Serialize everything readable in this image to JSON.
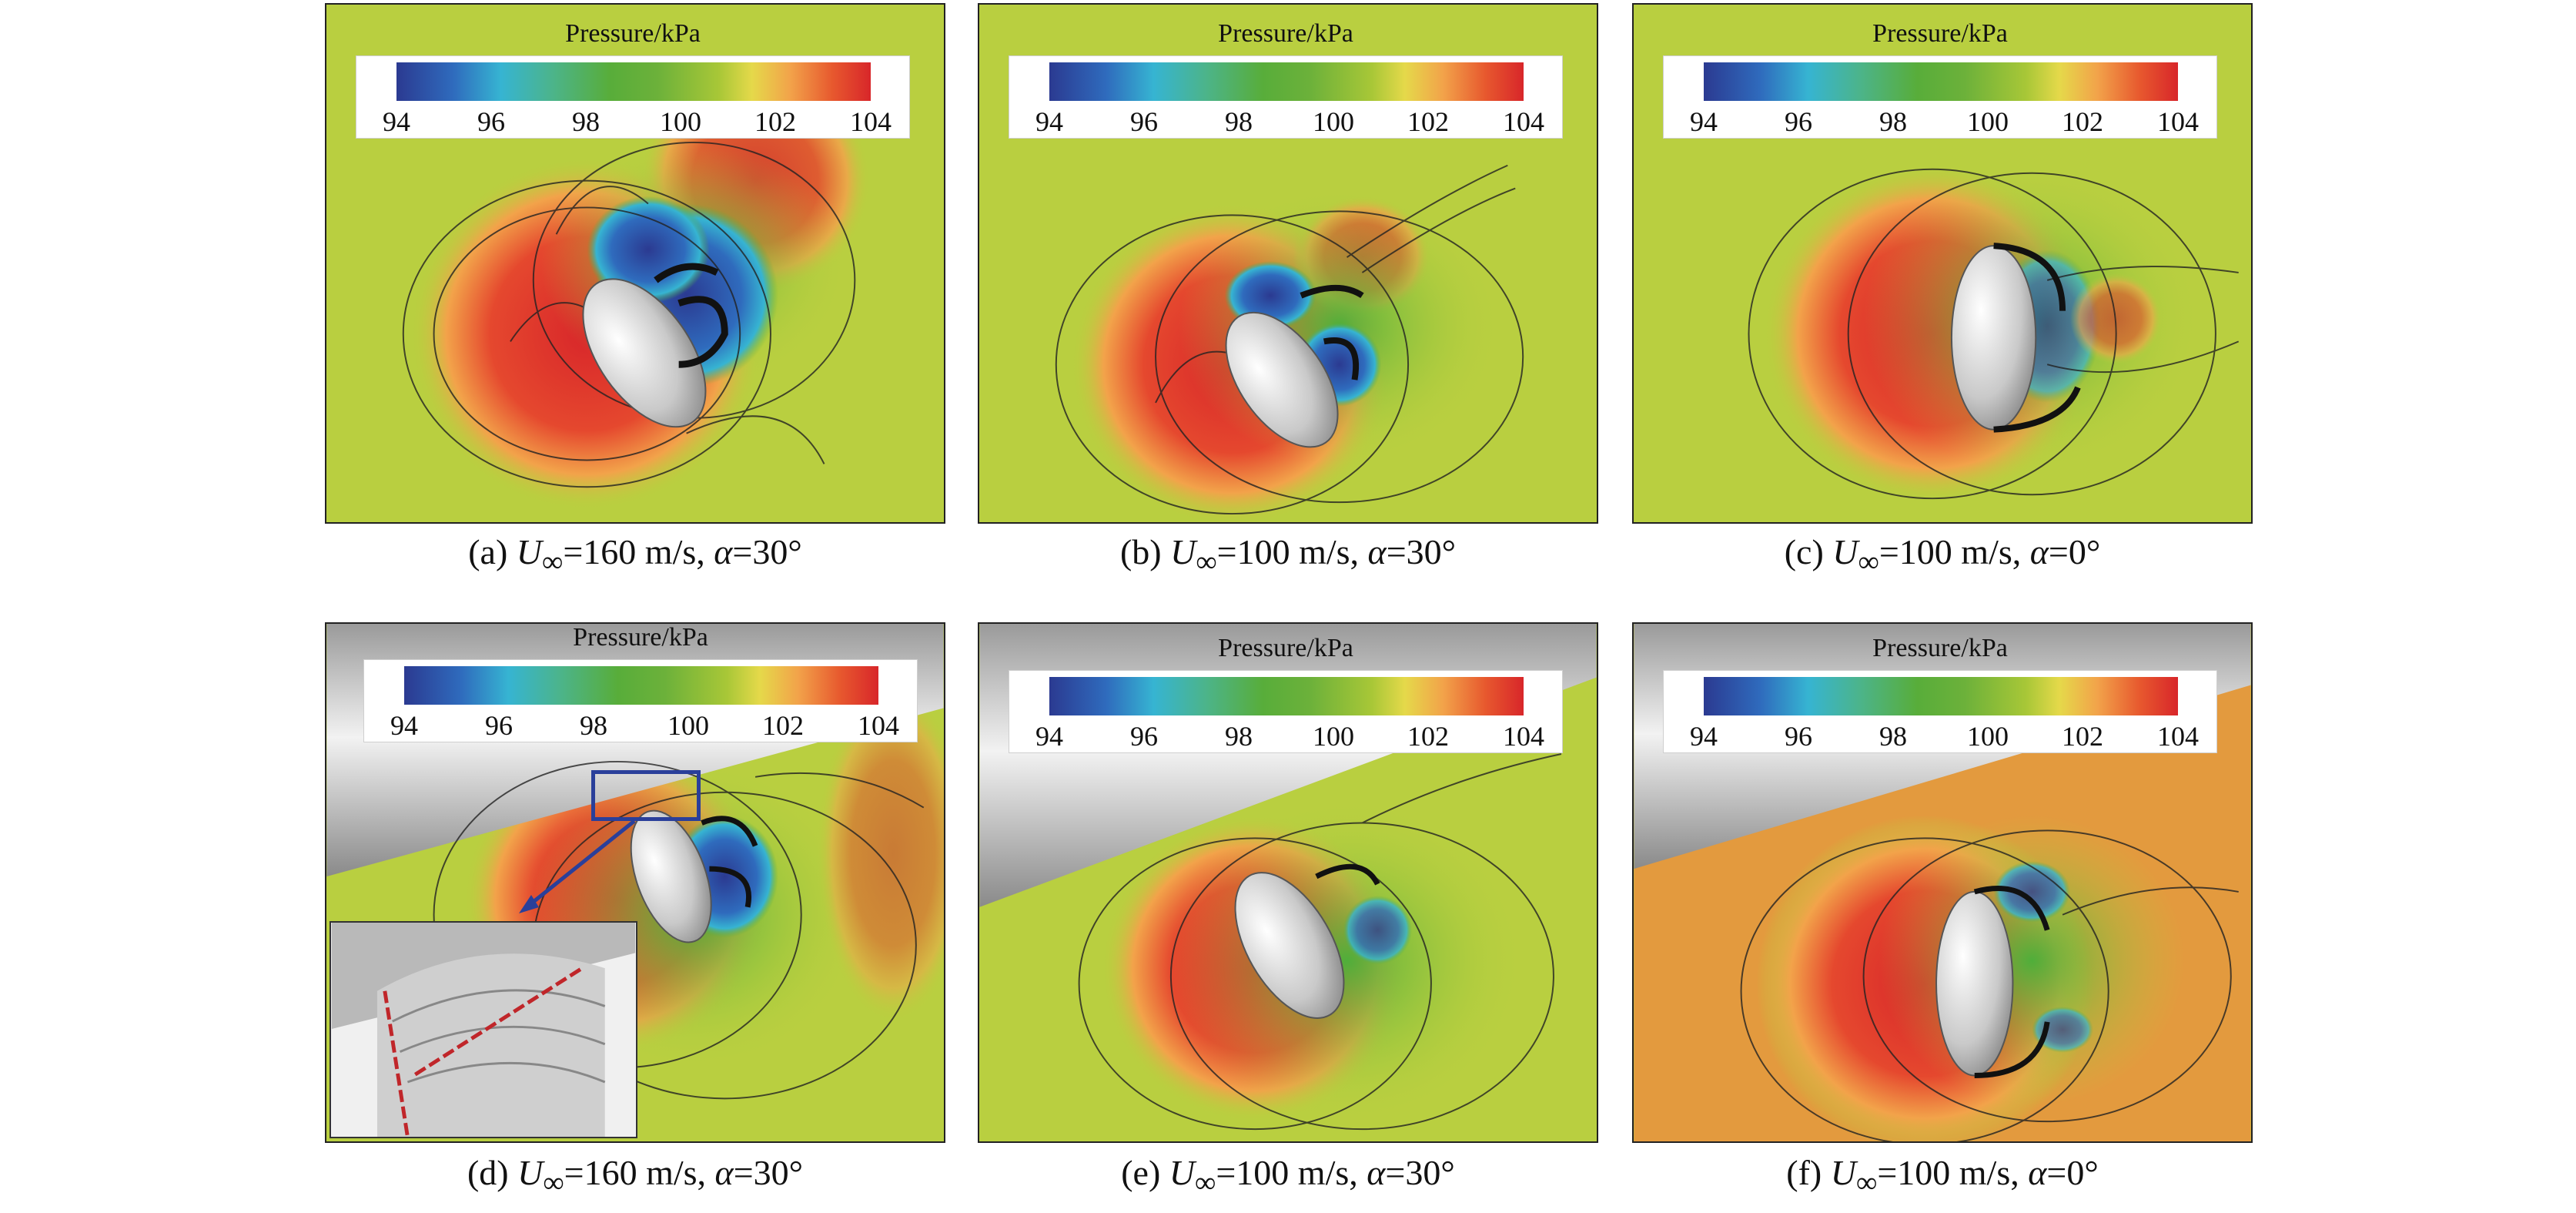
{
  "legend": {
    "title": "Pressure/kPa",
    "ticks": [
      "94",
      "96",
      "98",
      "100",
      "102",
      "104"
    ]
  },
  "panels": [
    {
      "caption": {
        "label": "(a)",
        "u": "U",
        "sub": "∞",
        "speed": "=160 m/s,",
        "alpha": "α",
        "angle": "=30°"
      }
    },
    {
      "caption": {
        "label": "(b)",
        "u": "U",
        "sub": "∞",
        "speed": "=100 m/s,",
        "alpha": "α",
        "angle": "=30°"
      }
    },
    {
      "caption": {
        "label": "(c)",
        "u": "U",
        "sub": "∞",
        "speed": "=100 m/s,",
        "alpha": "α",
        "angle": "=0°"
      }
    },
    {
      "caption": {
        "label": "(d)",
        "u": "U",
        "sub": "∞",
        "speed": "=160 m/s,",
        "alpha": "α",
        "angle": "=30°"
      }
    },
    {
      "caption": {
        "label": "(e)",
        "u": "U",
        "sub": "∞",
        "speed": "=100 m/s,",
        "alpha": "α",
        "angle": "=30°"
      }
    },
    {
      "caption": {
        "label": "(f)",
        "u": "U",
        "sub": "∞",
        "speed": "=100 m/s,",
        "alpha": "α",
        "angle": "=0°"
      }
    }
  ],
  "colors": {
    "background_field": "#b8cf3e",
    "high_pressure": "#d8262a",
    "low_pressure": "#2b4aa8",
    "fuselage": "#e8e8e8"
  }
}
